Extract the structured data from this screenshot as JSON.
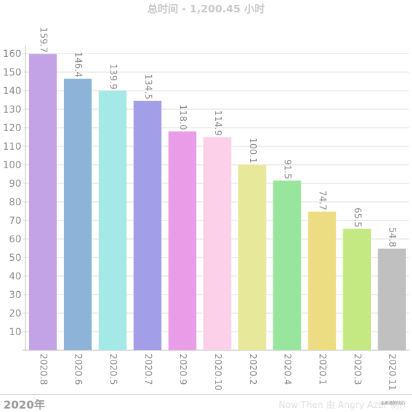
{
  "header": {
    "title": "总时间 - 1,200.45 小时"
  },
  "footer": {
    "year_label": "2020年",
    "credit": "Now Then 由 Angry Azur 制作",
    "watermark": "@迷途的忧心"
  },
  "chart_data": {
    "type": "bar",
    "title": "总时间 - 1,200.45 小时",
    "xlabel": "",
    "ylabel": "",
    "ylim": [
      0,
      160
    ],
    "yticks": [
      10,
      20,
      30,
      40,
      50,
      60,
      70,
      80,
      90,
      100,
      110,
      120,
      130,
      140,
      150,
      160
    ],
    "grid": true,
    "categories": [
      "2020.8",
      "2020.6",
      "2020.5",
      "2020.7",
      "2020.9",
      "2020.10",
      "2020.2",
      "2020.4",
      "2020.1",
      "2020.3",
      "2020.11"
    ],
    "values": [
      159.7,
      146.4,
      139.9,
      134.5,
      118.0,
      114.9,
      100.1,
      91.5,
      74.7,
      65.5,
      54.8
    ],
    "value_labels": [
      "159.7",
      "146.4",
      "139.9",
      "134.5",
      "118.0",
      "114.9",
      "100.1",
      "91.5",
      "74.7",
      "65.5",
      "54.8"
    ],
    "colors": [
      "#c3a2e6",
      "#8eb3d9",
      "#a5e8e8",
      "#a29ee8",
      "#e89de6",
      "#fcd0e8",
      "#e8e89b",
      "#98e69d",
      "#ecdc82",
      "#c4e882",
      "#c0c0c0"
    ]
  }
}
